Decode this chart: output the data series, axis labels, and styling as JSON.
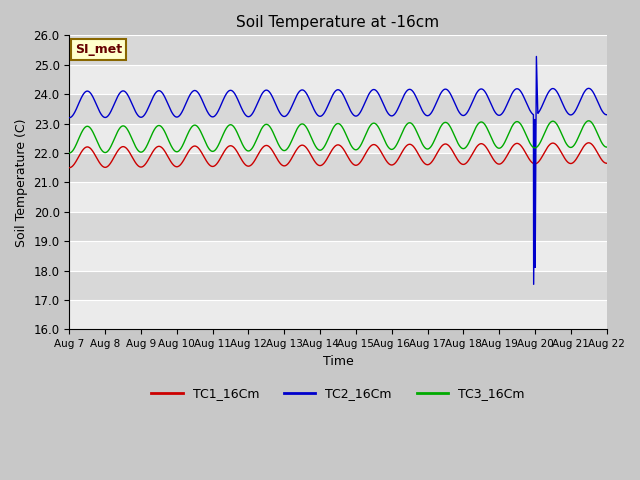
{
  "title": "Soil Temperature at -16cm",
  "xlabel": "Time",
  "ylabel": "Soil Temperature (C)",
  "ylim": [
    16.0,
    26.0
  ],
  "yticks": [
    16.0,
    17.0,
    18.0,
    19.0,
    20.0,
    21.0,
    22.0,
    23.0,
    24.0,
    25.0,
    26.0
  ],
  "xtick_labels": [
    "Aug 7",
    "Aug 8",
    "Aug 9",
    "Aug 10",
    "Aug 11",
    "Aug 12",
    "Aug 13",
    "Aug 14",
    "Aug 15",
    "Aug 16",
    "Aug 17",
    "Aug 18",
    "Aug 19",
    "Aug 20",
    "Aug 21",
    "Aug 22"
  ],
  "legend_labels": [
    "TC1_16Cm",
    "TC2_16Cm",
    "TC3_16Cm"
  ],
  "line_colors": [
    "#cc0000",
    "#0000cc",
    "#00aa00"
  ],
  "annotation_label": "SI_met",
  "annotation_bg": "#ffffcc",
  "annotation_border": "#886600",
  "plot_bg_light": "#ebebeb",
  "plot_bg_dark": "#d8d8d8",
  "grid_color": "#ffffff",
  "fig_bg": "#c8c8c8",
  "n_days": 15,
  "tc1_base": 21.85,
  "tc1_amp": 0.35,
  "tc1_trend": 0.15,
  "tc2_base": 23.65,
  "tc2_amp": 0.45,
  "tc2_trend": 0.1,
  "tc3_base": 22.45,
  "tc3_amp": 0.45,
  "tc3_trend": 0.2,
  "spike_day": 13.0,
  "spike_low": 16.83,
  "spike_high": 25.32
}
